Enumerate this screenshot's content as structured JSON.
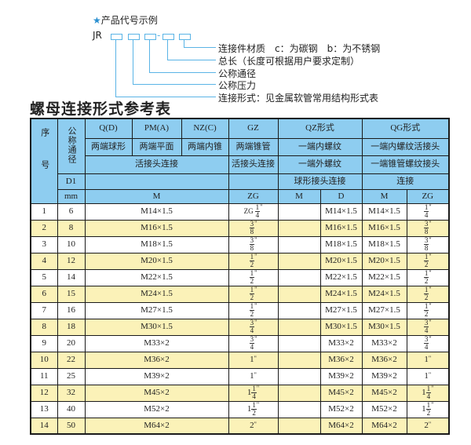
{
  "code_example": {
    "title": "产品代号示例",
    "star_icon": "star-icon",
    "prefix": "JR",
    "dash": "-",
    "labels": [
      "连接件材质　c：为碳钢　b：为不锈钢",
      "总长（长度可根据用户要求定制）",
      "公称通径",
      "公称压力",
      "连接形式：见金属软管常用结构形式表"
    ]
  },
  "table_title": "螺母连接形式参考表",
  "colors": {
    "header_bg": "#8ecdf0",
    "even_row_bg": "#fbf2b8",
    "accent": "#5ab4e6"
  },
  "header": {
    "seq": "序号",
    "dn": "公称通径",
    "d1": "D1",
    "mm": "mm",
    "q": "Q(D)",
    "pm": "PM(A)",
    "nz": "NZ(C)",
    "gz": "GZ",
    "qz": "QZ形式",
    "qg": "QG形式",
    "q_desc": "两端球形",
    "pm_desc": "两端平面",
    "nz_desc": "两端内锥",
    "gz_desc": "两端锥管",
    "qz_desc1": "一端内螺纹",
    "qg_desc1": "一端内螺纹活接头",
    "qpmnz_conn": "活接头连接",
    "gz_conn": "活接头连接",
    "qz_desc2": "一端外螺纹",
    "qg_desc2": "一端锥管螺纹接头",
    "qz_desc3": "球形接头连接",
    "qg_desc3": "连接",
    "col_m": "M",
    "col_zg": "ZG",
    "col_qz_m": "M",
    "col_qz_d": "D",
    "col_qg_m": "M",
    "col_qg_zg": "ZG"
  },
  "rows": [
    {
      "no": "1",
      "dn": "6",
      "m": "M14×1.5",
      "zg": {
        "pre": "ZG",
        "whole": "",
        "num": "1",
        "den": "4"
      },
      "qz_m": "",
      "qz_d": "M14×1.5",
      "qg_m": "M14×1.5",
      "qg_zg": {
        "whole": "",
        "num": "1",
        "den": "4"
      }
    },
    {
      "no": "2",
      "dn": "8",
      "m": "M16×1.5",
      "zg": {
        "whole": "",
        "num": "3",
        "den": "8"
      },
      "qz_m": "",
      "qz_d": "M16×1.5",
      "qg_m": "M16×1.5",
      "qg_zg": {
        "whole": "",
        "num": "3",
        "den": "8"
      }
    },
    {
      "no": "3",
      "dn": "10",
      "m": "M18×1.5",
      "zg": {
        "whole": "",
        "num": "3",
        "den": "8"
      },
      "qz_m": "",
      "qz_d": "M18×1.5",
      "qg_m": "M18×1.5",
      "qg_zg": {
        "whole": "",
        "num": "3",
        "den": "8"
      }
    },
    {
      "no": "4",
      "dn": "12",
      "m": "M20×1.5",
      "zg": {
        "whole": "",
        "num": "1",
        "den": "2"
      },
      "qz_m": "",
      "qz_d": "M20×1.5",
      "qg_m": "M20×1.5",
      "qg_zg": {
        "whole": "",
        "num": "1",
        "den": "2"
      }
    },
    {
      "no": "5",
      "dn": "14",
      "m": "M22×1.5",
      "zg": {
        "whole": "",
        "num": "1",
        "den": "2"
      },
      "qz_m": "",
      "qz_d": "M22×1.5",
      "qg_m": "M22×1.5",
      "qg_zg": {
        "whole": "",
        "num": "1",
        "den": "2"
      }
    },
    {
      "no": "6",
      "dn": "15",
      "m": "M24×1.5",
      "zg": {
        "whole": "",
        "num": "1",
        "den": "2"
      },
      "qz_m": "",
      "qz_d": "M24×1.5",
      "qg_m": "M24×1.5",
      "qg_zg": {
        "whole": "",
        "num": "1",
        "den": "2"
      }
    },
    {
      "no": "7",
      "dn": "16",
      "m": "M27×1.5",
      "zg": {
        "whole": "",
        "num": "1",
        "den": "2"
      },
      "qz_m": "",
      "qz_d": "M27×1.5",
      "qg_m": "M27×1.5",
      "qg_zg": {
        "whole": "",
        "num": "1",
        "den": "2"
      }
    },
    {
      "no": "8",
      "dn": "18",
      "m": "M30×1.5",
      "zg": {
        "whole": "",
        "num": "3",
        "den": "4"
      },
      "qz_m": "",
      "qz_d": "M30×1.5",
      "qg_m": "M30×1.5",
      "qg_zg": {
        "whole": "",
        "num": "3",
        "den": "4"
      }
    },
    {
      "no": "9",
      "dn": "20",
      "m": "M33×2",
      "zg": {
        "whole": "",
        "num": "3",
        "den": "4"
      },
      "qz_m": "",
      "qz_d": "M33×2",
      "qg_m": "M33×2",
      "qg_zg": {
        "whole": "",
        "num": "3",
        "den": "4"
      }
    },
    {
      "no": "10",
      "dn": "22",
      "m": "M36×2",
      "zg": {
        "whole": "1",
        "num": "",
        "den": ""
      },
      "qz_m": "",
      "qz_d": "M36×2",
      "qg_m": "M36×2",
      "qg_zg": {
        "whole": "1",
        "num": "",
        "den": ""
      }
    },
    {
      "no": "11",
      "dn": "25",
      "m": "M39×2",
      "zg": {
        "whole": "1",
        "num": "",
        "den": ""
      },
      "qz_m": "",
      "qz_d": "M39×2",
      "qg_m": "M39×2",
      "qg_zg": {
        "whole": "1",
        "num": "",
        "den": ""
      }
    },
    {
      "no": "12",
      "dn": "32",
      "m": "M45×2",
      "zg": {
        "whole": "1",
        "num": "1",
        "den": "4"
      },
      "qz_m": "",
      "qz_d": "M45×2",
      "qg_m": "M45×2",
      "qg_zg": {
        "whole": "1",
        "num": "1",
        "den": "4"
      }
    },
    {
      "no": "13",
      "dn": "40",
      "m": "M52×2",
      "zg": {
        "whole": "1",
        "num": "1",
        "den": "2"
      },
      "qz_m": "",
      "qz_d": "M52×2",
      "qg_m": "M52×2",
      "qg_zg": {
        "whole": "1",
        "num": "1",
        "den": "2"
      }
    },
    {
      "no": "14",
      "dn": "50",
      "m": "M64×2",
      "zg": {
        "whole": "2",
        "num": "",
        "den": ""
      },
      "qz_m": "",
      "qz_d": "M64×2",
      "qg_m": "M64×2",
      "qg_zg": {
        "whole": "2",
        "num": "",
        "den": ""
      }
    }
  ],
  "inch_mark": "\""
}
